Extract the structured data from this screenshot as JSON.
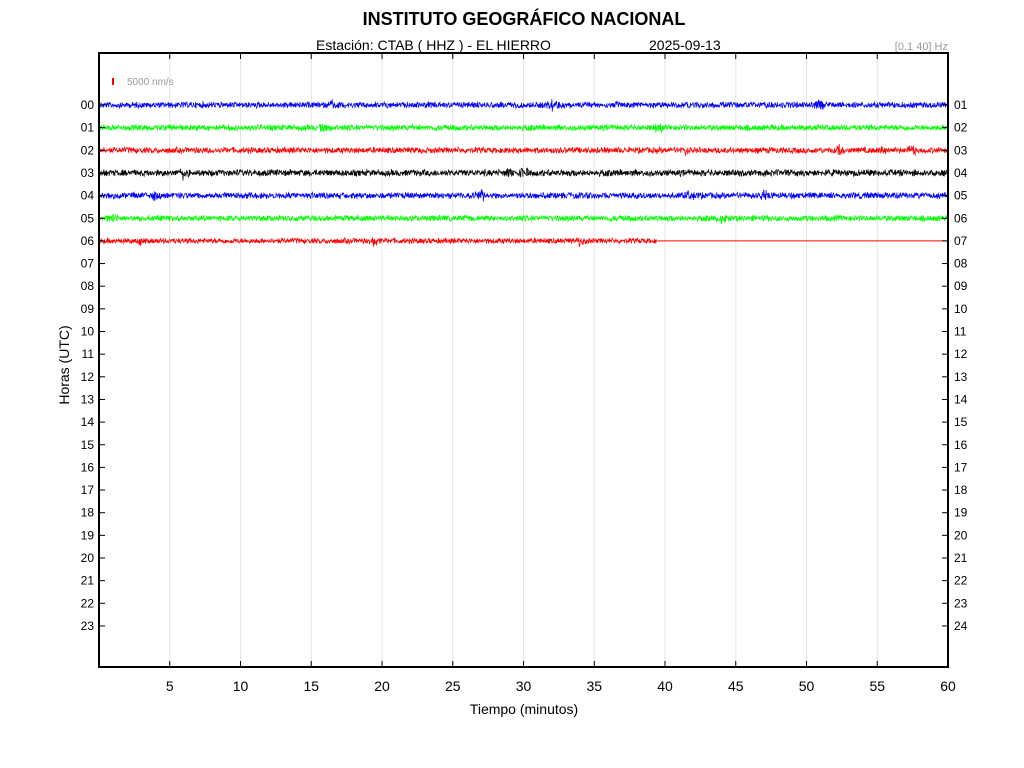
{
  "header": {
    "title": "INSTITUTO GEOGRÁFICO NACIONAL",
    "station_line": "Estación:  CTAB ( HHZ ) - EL HIERRO",
    "date": "2025-09-13",
    "filter": "[0.1 40] Hz"
  },
  "chart_data": {
    "type": "line",
    "title": "INSTITUTO GEOGRÁFICO NACIONAL",
    "xlabel": "Tiempo (minutos)",
    "ylabel": "Horas (UTC)",
    "xlim": [
      0,
      60
    ],
    "x_ticks": [
      5,
      10,
      15,
      20,
      25,
      30,
      35,
      40,
      45,
      50,
      55,
      60
    ],
    "left_tick_labels": [
      "00",
      "01",
      "02",
      "03",
      "04",
      "05",
      "06",
      "07",
      "08",
      "09",
      "10",
      "11",
      "12",
      "13",
      "14",
      "15",
      "16",
      "17",
      "18",
      "19",
      "20",
      "21",
      "22",
      "23"
    ],
    "right_tick_labels": [
      "01",
      "02",
      "03",
      "04",
      "05",
      "06",
      "07",
      "08",
      "09",
      "10",
      "11",
      "12",
      "13",
      "14",
      "15",
      "16",
      "17",
      "18",
      "19",
      "20",
      "21",
      "22",
      "23",
      "24"
    ],
    "grid": "vertical",
    "scale_bar": {
      "label": "5000 nm/s",
      "color": "#ff0000"
    },
    "series": [
      {
        "hour": 0,
        "color": "#0000ff",
        "end_minute": 60,
        "amplitude": 3.5,
        "events": [
          16.5,
          32,
          51
        ]
      },
      {
        "hour": 1,
        "color": "#00ff00",
        "end_minute": 60,
        "amplitude": 3.5,
        "events": [
          39.5,
          16
        ]
      },
      {
        "hour": 2,
        "color": "#ff0000",
        "end_minute": 60,
        "amplitude": 3.5,
        "events": [
          41.5,
          52.3,
          55.5,
          57.5
        ]
      },
      {
        "hour": 3,
        "color": "#000000",
        "end_minute": 60,
        "amplitude": 3.8,
        "events": [
          6,
          29,
          30
        ]
      },
      {
        "hour": 4,
        "color": "#0000ff",
        "end_minute": 60,
        "amplitude": 3.6,
        "events": [
          4,
          27,
          41.8,
          47
        ]
      },
      {
        "hour": 5,
        "color": "#00ff00",
        "end_minute": 60,
        "amplitude": 3.5,
        "events": [
          1,
          44
        ]
      },
      {
        "hour": 6,
        "color": "#ff0000",
        "end_minute": 39.5,
        "amplitude": 3.2,
        "events": [
          3,
          19.5,
          34
        ]
      }
    ],
    "flatline": {
      "hour": 6,
      "from_minute": 39.5,
      "to_minute": 60,
      "color": "#ff0000"
    }
  }
}
